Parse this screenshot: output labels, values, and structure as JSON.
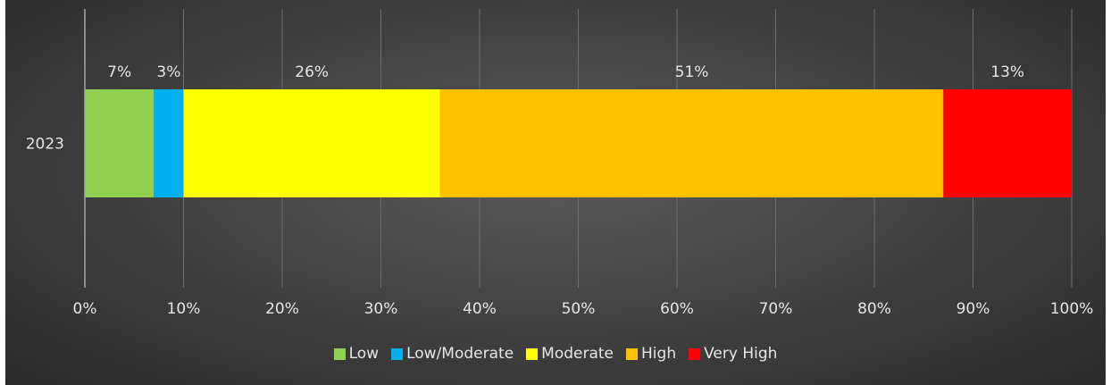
{
  "chart_data": {
    "type": "bar",
    "orientation": "horizontal",
    "stacked": "percent",
    "categories": [
      "2023"
    ],
    "series": [
      {
        "name": "Low",
        "values": [
          7
        ],
        "label": "7%",
        "color": "#92d050"
      },
      {
        "name": "Low/Moderate",
        "values": [
          3
        ],
        "label": "3%",
        "color": "#00b0f0"
      },
      {
        "name": "Moderate",
        "values": [
          26
        ],
        "label": "26%",
        "color": "#ffff00"
      },
      {
        "name": "High",
        "values": [
          51
        ],
        "label": "51%",
        "color": "#ffc000"
      },
      {
        "name": "Very High",
        "values": [
          13
        ],
        "label": "13%",
        "color": "#ff0000"
      }
    ],
    "xlim": [
      0,
      100
    ],
    "x_ticks": [
      "0%",
      "10%",
      "20%",
      "30%",
      "40%",
      "50%",
      "60%",
      "70%",
      "80%",
      "90%",
      "100%"
    ],
    "grid": true,
    "legend_position": "bottom",
    "title": "",
    "xlabel": "",
    "ylabel": ""
  }
}
